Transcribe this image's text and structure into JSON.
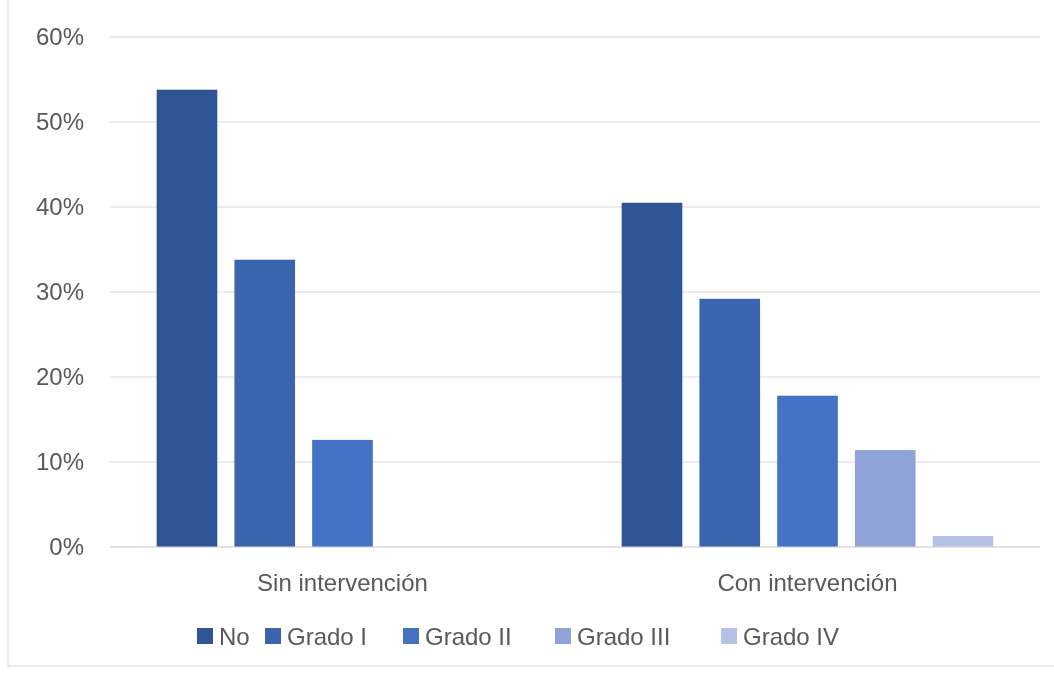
{
  "chart_data": {
    "type": "bar",
    "categories": [
      "Sin intervención",
      "Con intervención"
    ],
    "series": [
      {
        "name": "No",
        "color": "#2f5597",
        "values": [
          53.8,
          40.5
        ]
      },
      {
        "name": "Grado I",
        "color": "#3a64ae",
        "values": [
          33.8,
          29.2
        ]
      },
      {
        "name": "Grado II",
        "color": "#4472c4",
        "values": [
          12.6,
          17.8
        ]
      },
      {
        "name": "Grado III",
        "color": "#8fa3d6",
        "values": [
          0,
          11.4
        ]
      },
      {
        "name": "Grado IV",
        "color": "#b4c0e4",
        "values": [
          0,
          1.3
        ]
      }
    ],
    "ylim": [
      0,
      60
    ],
    "yticks": [
      {
        "value": 0,
        "label": "0%"
      },
      {
        "value": 10,
        "label": "10%"
      },
      {
        "value": 20,
        "label": "20%"
      },
      {
        "value": 30,
        "label": "30%"
      },
      {
        "value": 40,
        "label": "40%"
      },
      {
        "value": 50,
        "label": "50%"
      },
      {
        "value": 60,
        "label": "60%"
      }
    ],
    "grid": "y",
    "legend": "bottom"
  }
}
